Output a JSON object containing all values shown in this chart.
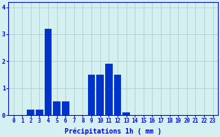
{
  "hours": [
    0,
    1,
    2,
    3,
    4,
    5,
    6,
    7,
    8,
    9,
    10,
    11,
    12,
    13,
    14,
    15,
    16,
    17,
    18,
    19,
    20,
    21,
    22,
    23
  ],
  "values": [
    0,
    0,
    0.2,
    0.2,
    3.2,
    0.5,
    0.5,
    0,
    0,
    1.5,
    1.5,
    1.9,
    1.5,
    0.1,
    0,
    0,
    0,
    0,
    0,
    0,
    0,
    0,
    0,
    0
  ],
  "bar_color": "#0033cc",
  "background_color": "#d5f0f0",
  "grid_color": "#b0cccc",
  "axis_color": "#0000cc",
  "tick_color": "#0000cc",
  "xlabel": "Précipitations 1h ( mm )",
  "ylim": [
    0,
    4.2
  ],
  "yticks": [
    0,
    1,
    2,
    3,
    4
  ],
  "xlabel_fontsize": 7,
  "tick_fontsize": 5.5
}
